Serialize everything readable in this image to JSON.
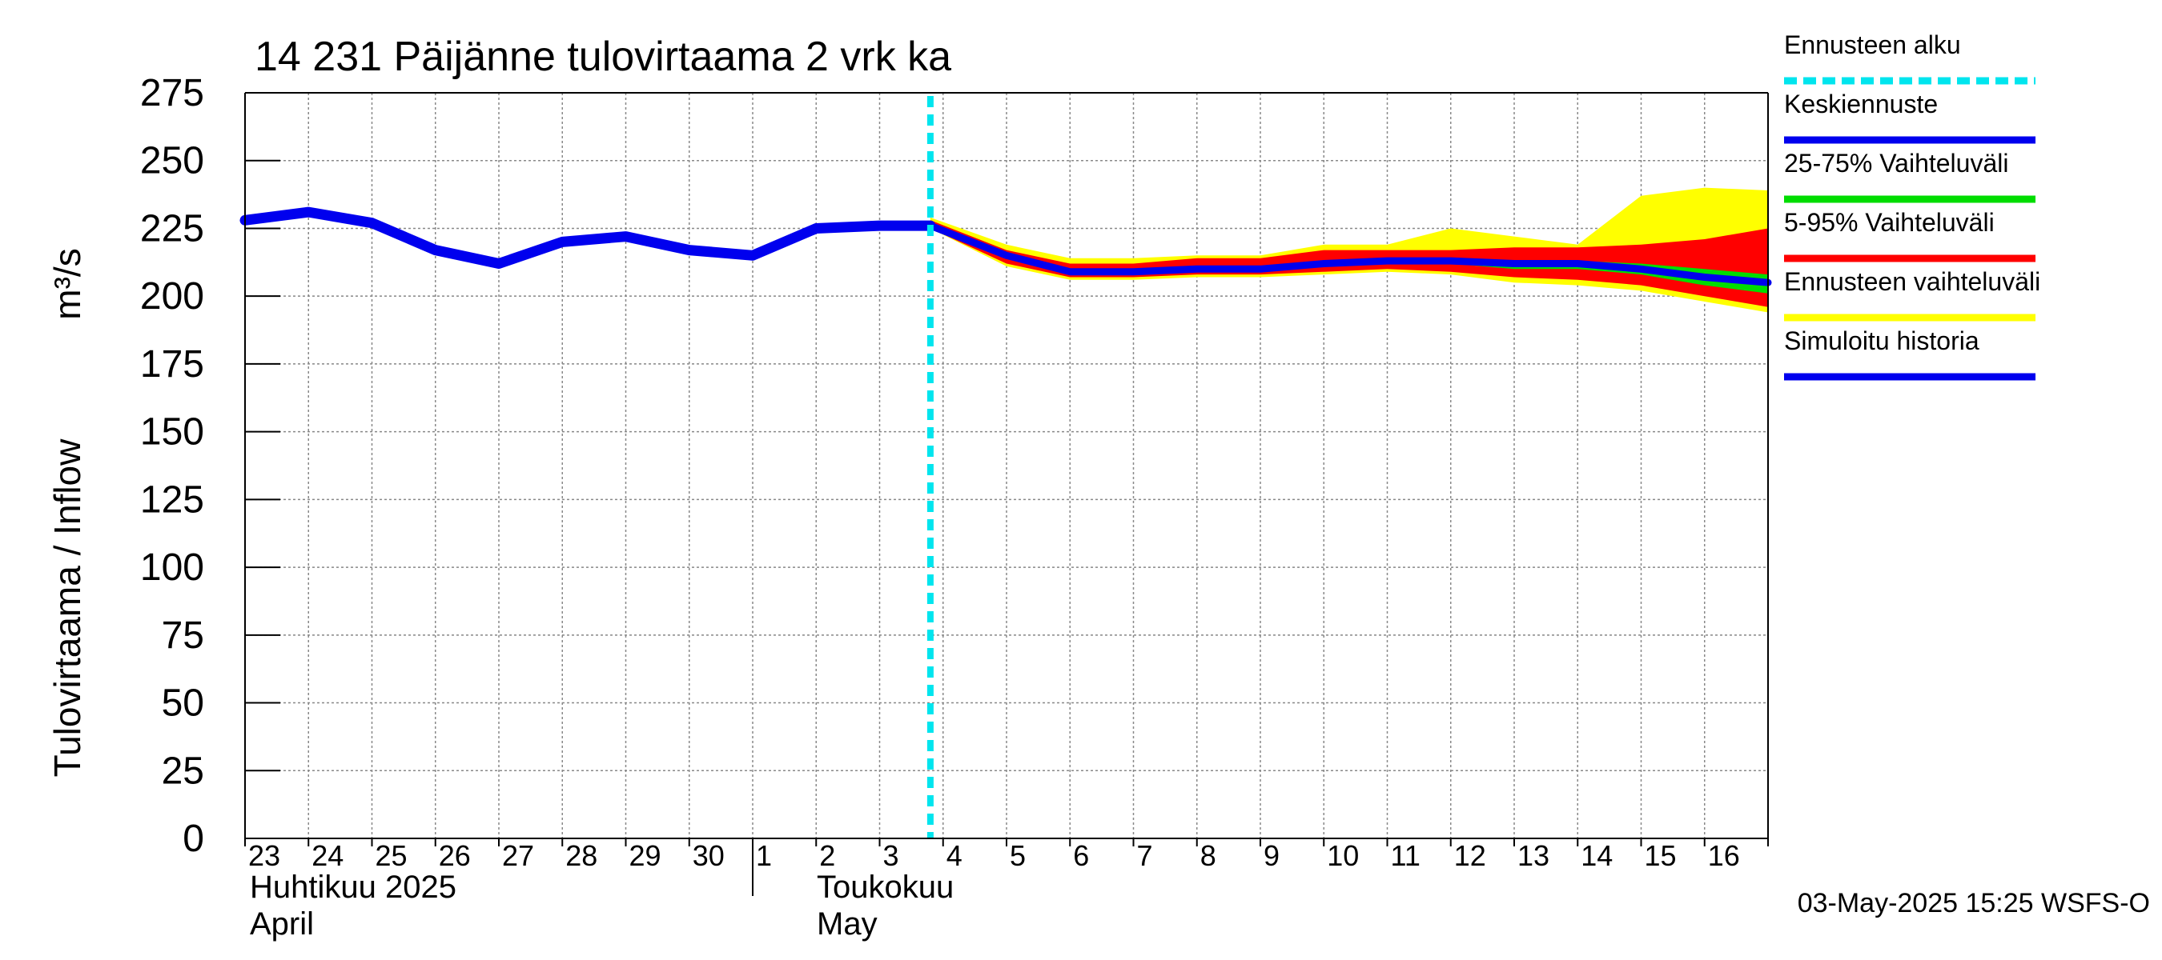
{
  "chart_data": {
    "type": "area",
    "title": "14 231 Päijänne tulovirtaama 2 vrk ka",
    "ylabel_fi": "Tulovirtaama / Inflow",
    "ylabel_unit": "m³/s",
    "ylim": [
      0,
      275
    ],
    "yticks": [
      0,
      25,
      50,
      75,
      100,
      125,
      150,
      175,
      200,
      225,
      250,
      275
    ],
    "x_day_index_range": [
      0,
      24
    ],
    "x_tick_labels": [
      "23",
      "24",
      "25",
      "26",
      "27",
      "28",
      "29",
      "30",
      "1",
      "2",
      "3",
      "4",
      "5",
      "6",
      "7",
      "8",
      "9",
      "10",
      "11",
      "12",
      "13",
      "14",
      "15",
      "16"
    ],
    "month_labels": [
      {
        "line1": "Huhtikuu  2025",
        "line2": "April",
        "start_day_index": 0
      },
      {
        "line1": "Toukokuu",
        "line2": "May",
        "start_day_index": 8
      }
    ],
    "forecast_start_day_index": 10.8,
    "grid": true,
    "legend_position": "right",
    "legend": [
      {
        "label": "Ennusteen alku",
        "color": "#00e5ee",
        "style": "dashed"
      },
      {
        "label": "Keskiennuste",
        "color": "#0000ee",
        "style": "line"
      },
      {
        "label": "25-75% Vaihteluväli",
        "color": "#00dd00",
        "style": "line"
      },
      {
        "label": "5-95% Vaihteluväli",
        "color": "#ff0000",
        "style": "line"
      },
      {
        "label": "Ennusteen vaihteluväli",
        "color": "#ffff00",
        "style": "line"
      },
      {
        "label": "Simuloitu historia",
        "color": "#0000ee",
        "style": "line"
      }
    ],
    "series": [
      {
        "name": "Simuloitu historia",
        "color": "#0000ee",
        "x": [
          0,
          1,
          2,
          3,
          4,
          5,
          6,
          7,
          8,
          9,
          10,
          10.8
        ],
        "y": [
          228,
          231,
          227,
          217,
          212,
          220,
          222,
          217,
          215,
          225,
          226,
          226
        ]
      },
      {
        "name": "Ennusteen vaihteluväli (max)",
        "color": "#ffff00",
        "x": [
          10.8,
          12,
          13,
          14,
          15,
          16,
          17,
          18,
          19,
          20,
          21,
          22,
          23,
          24
        ],
        "y": [
          229,
          219,
          214,
          214,
          215,
          215,
          219,
          219,
          225,
          222,
          219,
          237,
          240,
          239
        ]
      },
      {
        "name": "Ennusteen vaihteluväli (min)",
        "color": "#ffff00",
        "x": [
          10.8,
          12,
          13,
          14,
          15,
          16,
          17,
          18,
          19,
          20,
          21,
          22,
          23,
          24
        ],
        "y": [
          225,
          211,
          206,
          206,
          207,
          207,
          208,
          209,
          208,
          205,
          204,
          202,
          198,
          194
        ]
      },
      {
        "name": "5-95% Vaihteluväli (max)",
        "color": "#ff0000",
        "x": [
          10.8,
          12,
          13,
          14,
          15,
          16,
          17,
          18,
          19,
          20,
          21,
          22,
          23,
          24
        ],
        "y": [
          228,
          217,
          212,
          212,
          214,
          214,
          217,
          217,
          217,
          218,
          218,
          219,
          221,
          225
        ]
      },
      {
        "name": "5-95% Vaihteluväli (min)",
        "color": "#ff0000",
        "x": [
          10.8,
          12,
          13,
          14,
          15,
          16,
          17,
          18,
          19,
          20,
          21,
          22,
          23,
          24
        ],
        "y": [
          225,
          212,
          207,
          207,
          208,
          208,
          209,
          210,
          209,
          207,
          206,
          204,
          200,
          196
        ]
      },
      {
        "name": "25-75% Vaihteluväli (max)",
        "color": "#00dd00",
        "x": [
          10.8,
          12,
          13,
          14,
          15,
          16,
          17,
          18,
          19,
          20,
          21,
          22,
          23,
          24
        ],
        "y": [
          227,
          216,
          210,
          210,
          211,
          211,
          213,
          214,
          214,
          213,
          213,
          212,
          210,
          208
        ]
      },
      {
        "name": "25-75% Vaihteluväli (min)",
        "color": "#00dd00",
        "x": [
          10.8,
          12,
          13,
          14,
          15,
          16,
          17,
          18,
          19,
          20,
          21,
          22,
          23,
          24
        ],
        "y": [
          226,
          214,
          208,
          208,
          209,
          209,
          211,
          212,
          212,
          210,
          210,
          208,
          204,
          201
        ]
      },
      {
        "name": "Keskiennuste",
        "color": "#0000ee",
        "x": [
          10.8,
          12,
          13,
          14,
          15,
          16,
          17,
          18,
          19,
          20,
          21,
          22,
          23,
          24
        ],
        "y": [
          226,
          215,
          209,
          209,
          210,
          210,
          212,
          213,
          213,
          212,
          212,
          210,
          207,
          205
        ]
      }
    ]
  },
  "footer": {
    "timestamp": "03-May-2025 15:25 WSFS-O"
  }
}
